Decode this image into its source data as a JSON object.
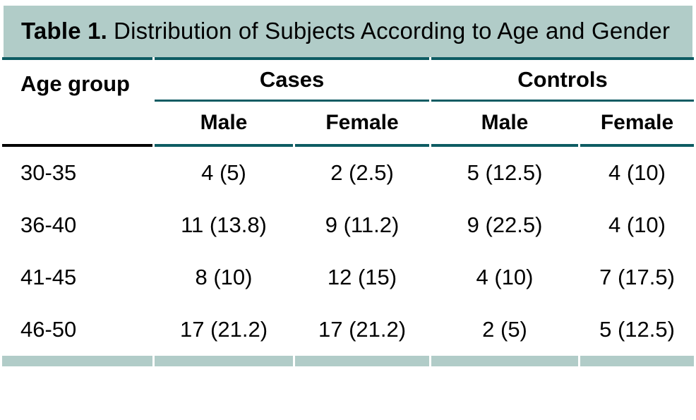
{
  "colors": {
    "band_bg": "#b1ccc8",
    "rule_teal": "#0e5c63",
    "rule_black": "#000000",
    "text": "#000000"
  },
  "title": {
    "label": "Table 1.",
    "caption": "Distribution of Subjects According to Age and Gender"
  },
  "table": {
    "row_header": "Age group",
    "column_groups": [
      {
        "label": "Cases"
      },
      {
        "label": "Controls"
      }
    ],
    "sub_headers": [
      "Male",
      "Female",
      "Male",
      "Female"
    ],
    "rows": [
      {
        "age": "30-35",
        "values": [
          "4 (5)",
          "2 (2.5)",
          "5 (12.5)",
          "4 (10)"
        ]
      },
      {
        "age": "36-40",
        "values": [
          "11 (13.8)",
          "9 (11.2)",
          "9 (22.5)",
          "4 (10)"
        ]
      },
      {
        "age": "41-45",
        "values": [
          "8 (10)",
          "12 (15)",
          "4 (10)",
          "7 (17.5)"
        ]
      },
      {
        "age": "46-50",
        "values": [
          "17 (21.2)",
          "17 (21.2)",
          "2 (5)",
          "5 (12.5)"
        ]
      }
    ]
  },
  "chart_data": {
    "type": "table",
    "title": "Table 1. Distribution of Subjects According to Age and Gender",
    "categories": [
      "30-35",
      "36-40",
      "41-45",
      "46-50"
    ],
    "series": [
      {
        "name": "Cases Male",
        "values": [
          "4 (5)",
          "11 (13.8)",
          "8 (10)",
          "17 (21.2)"
        ]
      },
      {
        "name": "Cases Female",
        "values": [
          "2 (2.5)",
          "9 (11.2)",
          "12 (15)",
          "17 (21.2)"
        ]
      },
      {
        "name": "Controls Male",
        "values": [
          "5 (12.5)",
          "9 (22.5)",
          "4 (10)",
          "2 (5)"
        ]
      },
      {
        "name": "Controls Female",
        "values": [
          "4 (10)",
          "4 (10)",
          "7 (17.5)",
          "5 (12.5)"
        ]
      }
    ]
  }
}
